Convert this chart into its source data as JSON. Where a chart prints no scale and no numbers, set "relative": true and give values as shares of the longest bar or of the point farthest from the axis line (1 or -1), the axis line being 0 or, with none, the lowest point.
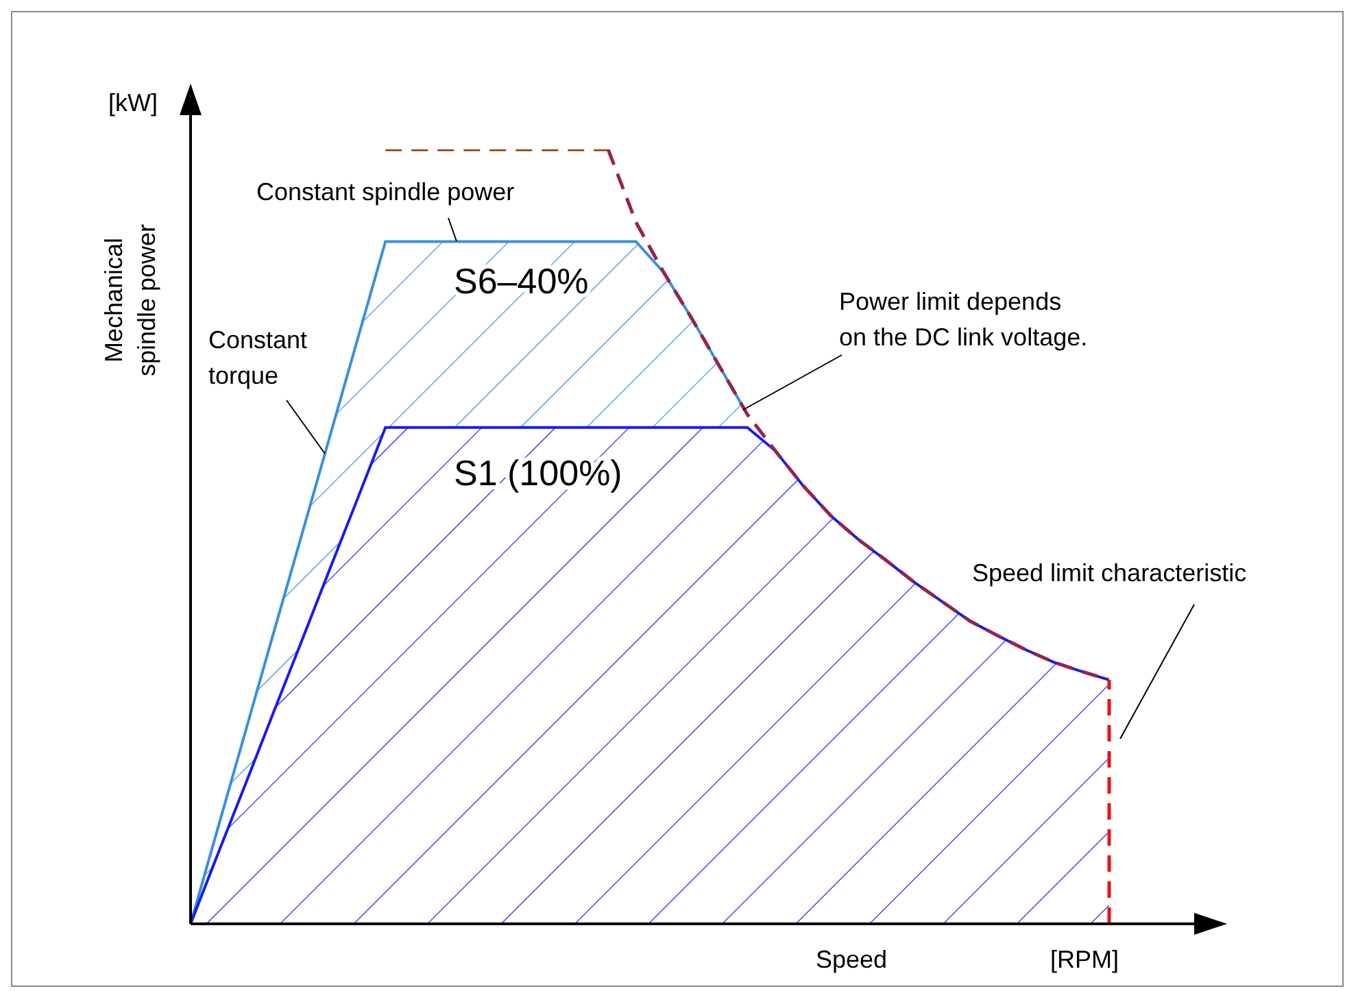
{
  "chart_data": {
    "type": "line",
    "relative": true,
    "xlabel": "Speed",
    "ylabel": "Mechanical spindle power",
    "legend": false,
    "grid": false,
    "tick_labels": false,
    "marker": "none",
    "categories": [
      null,
      null,
      null,
      null,
      null,
      null,
      null,
      null,
      null,
      null,
      null,
      null,
      null,
      null,
      null,
      null,
      null,
      null,
      null,
      null,
      null,
      null,
      null,
      null,
      null,
      null,
      null,
      null,
      null,
      null,
      null,
      null,
      null,
      null
    ],
    "annotations": [
      "Constant spindle power",
      "S6–40%",
      "Constant torque",
      "S1 (100%)",
      "Power limit depends on the DC link voltage.",
      "Speed limit characteristic",
      "[kW]",
      "[RPM]"
    ],
    "ref_lines": [
      {
        "axis": "x",
        "color": "#ee1111",
        "line_style": "dashed"
      }
    ],
    "series": [
      {
        "type": "area",
        "color": "#3a8fdc",
        "values": [
          0,
          0.126,
          0.252,
          0.378,
          0.503,
          0.629,
          0.755,
          0.881,
          0.881,
          0.881,
          0.881,
          0.881,
          0.881,
          0.881,
          0.881,
          0.881,
          0.881,
          0.841,
          0.782,
          0.72,
          0.658,
          null,
          null,
          null,
          null,
          null,
          null,
          null,
          null,
          null,
          null,
          null,
          null,
          null
        ]
      },
      {
        "type": "area",
        "color": "#1a1aee",
        "values": [
          0,
          0.092,
          0.183,
          0.275,
          0.366,
          0.458,
          0.549,
          0.641,
          0.641,
          0.641,
          0.641,
          0.641,
          0.641,
          0.641,
          0.641,
          0.641,
          0.641,
          0.641,
          0.641,
          0.641,
          0.641,
          0.611,
          0.566,
          0.527,
          0.496,
          0.469,
          0.441,
          0.416,
          0.391,
          0.372,
          0.354,
          0.338,
          0.326,
          0.315
        ]
      },
      {
        "color": "#993300",
        "line_style": "dashed",
        "values": [
          null,
          null,
          null,
          null,
          null,
          null,
          null,
          1,
          1,
          1,
          1,
          1,
          1,
          1,
          1,
          1,
          null,
          null,
          null,
          null,
          null,
          null,
          null,
          null,
          null,
          null,
          null,
          null,
          null,
          null,
          null,
          null,
          null,
          null
        ]
      },
      {
        "color": "#99224d",
        "line_style": "dashed",
        "values": [
          null,
          null,
          null,
          null,
          null,
          null,
          null,
          null,
          null,
          null,
          null,
          null,
          null,
          null,
          null,
          1,
          0.906,
          0.841,
          0.782,
          0.72,
          0.658,
          0.611,
          0.566,
          0.527,
          0.496,
          0.469,
          0.441,
          0.416,
          0.391,
          0.372,
          0.354,
          0.338,
          0.326,
          0.315
        ]
      }
    ]
  }
}
